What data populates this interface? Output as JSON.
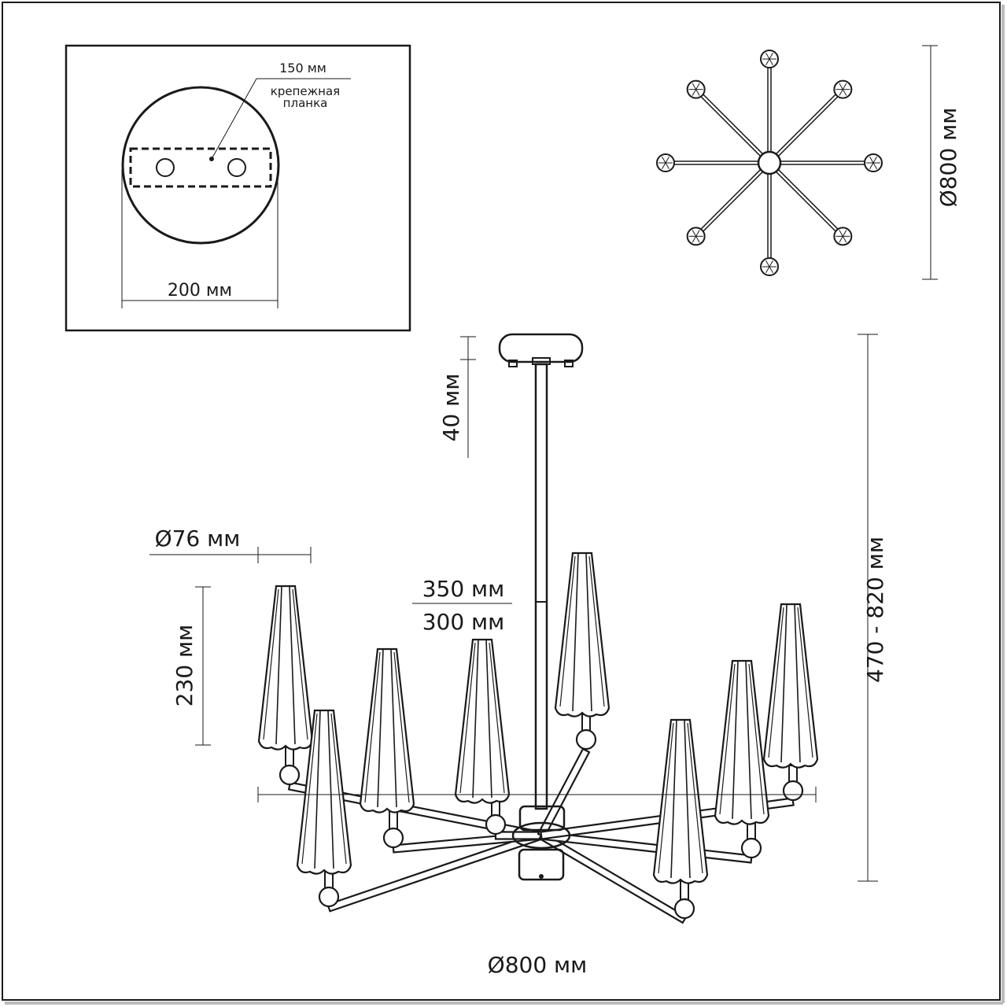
{
  "mount_detail": {
    "bracket_length": "150 мм",
    "bracket_label_line1": "крепежная",
    "bracket_label_line2": "планка",
    "canopy_diameter": "200 мм"
  },
  "top_view": {
    "diameter": "Ø800 мм",
    "arm_count": 8
  },
  "side_view": {
    "canopy_height": "40 мм",
    "shade_diameter": "Ø76 мм",
    "shade_height": "230 мм",
    "rod_length_top": "350 мм",
    "rod_length_bottom": "300 мм",
    "total_height": "470 - 820 мм",
    "total_diameter": "Ø800 мм",
    "shade_count": 8
  },
  "colors": {
    "line": "#1a1a1a",
    "background": "#ffffff"
  }
}
